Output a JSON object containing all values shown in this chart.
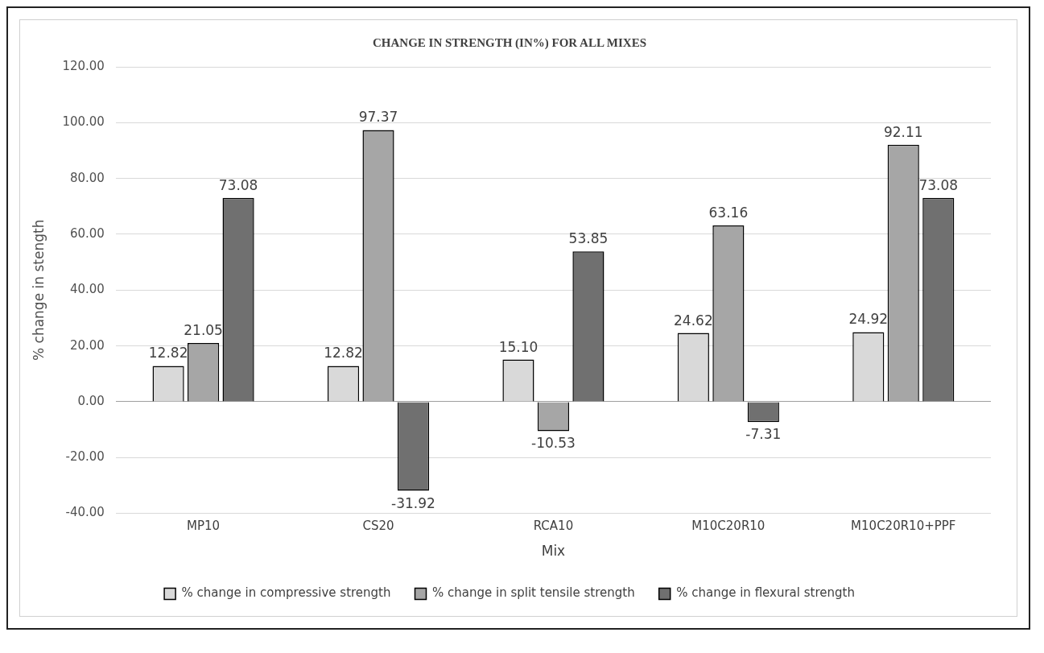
{
  "chart_data": {
    "type": "bar",
    "title": "CHANGE IN STRENGTH (IN%) FOR ALL MIXES",
    "xlabel": "Mix",
    "ylabel": "% change in stength",
    "categories": [
      "MP10",
      "CS20",
      "RCA10",
      "M10C20R10",
      "M10C20R10+PPF"
    ],
    "series": [
      {
        "name": "% change in compressive strength",
        "color": "#d9d9d9",
        "values": [
          12.82,
          12.82,
          15.1,
          24.62,
          24.92
        ],
        "value_labels": [
          "12.82",
          "12.82",
          "15.10",
          "24.62",
          "24.92"
        ]
      },
      {
        "name": "% change in split tensile strength",
        "color": "#a6a6a6",
        "values": [
          21.05,
          97.37,
          -10.53,
          63.16,
          92.11
        ],
        "value_labels": [
          "21.05",
          "97.37",
          "-10.53",
          "63.16",
          "92.11"
        ]
      },
      {
        "name": "% change in flexural strength",
        "color": "#707070",
        "values": [
          73.08,
          -31.92,
          53.85,
          -7.31,
          73.08
        ],
        "value_labels": [
          "73.08",
          "-31.92",
          "53.85",
          "-7.31",
          "73.08"
        ]
      }
    ],
    "ylim": [
      -40,
      120
    ],
    "yticks": [
      {
        "value": -40,
        "label": "-40.00"
      },
      {
        "value": -20,
        "label": "-20.00"
      },
      {
        "value": 0,
        "label": "0.00"
      },
      {
        "value": 20,
        "label": "20.00"
      },
      {
        "value": 40,
        "label": "40.00"
      },
      {
        "value": 60,
        "label": "60.00"
      },
      {
        "value": 80,
        "label": "80.00"
      },
      {
        "value": 100,
        "label": "100.00"
      },
      {
        "value": 120,
        "label": "120.00"
      }
    ],
    "grid": "y",
    "legend": "bottom"
  }
}
